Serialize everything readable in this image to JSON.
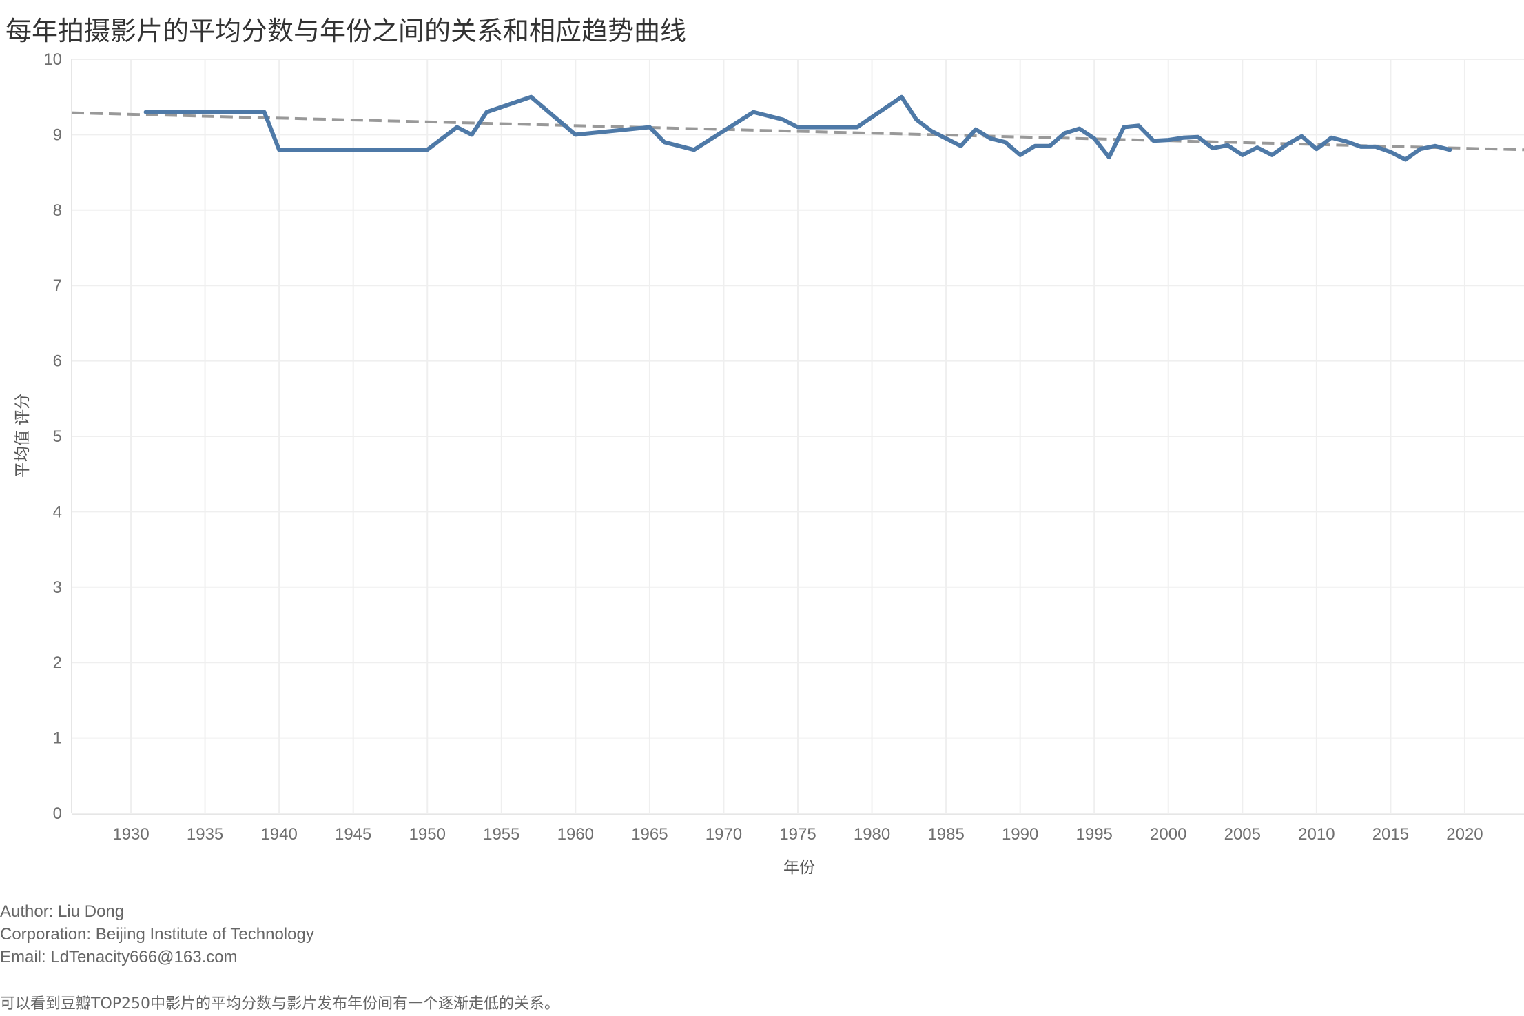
{
  "page": {
    "title": "每年拍摄影片的平均分数与年份之间的关系和相应趋势曲线",
    "credits": {
      "author": "Author: Liu Dong",
      "corporation": "Corporation: Beijing Institute of Technology",
      "email": "Email: LdTenacity666@163.com"
    },
    "note": "可以看到豆瓣TOP250中影片的平均分数与影片发布年份间有一个逐渐走低的关系。"
  },
  "chart_data": {
    "type": "line",
    "title": "每年拍摄影片的平均分数与年份之间的关系和相应趋势曲线",
    "xlabel": "年份",
    "ylabel": "平均值 评分",
    "xlim": [
      1926,
      2024
    ],
    "ylim": [
      0,
      10
    ],
    "x_ticks": [
      1930,
      1935,
      1940,
      1945,
      1950,
      1955,
      1960,
      1965,
      1970,
      1975,
      1980,
      1985,
      1990,
      1995,
      2000,
      2005,
      2010,
      2015,
      2020
    ],
    "y_ticks": [
      0,
      1,
      2,
      3,
      4,
      5,
      6,
      7,
      8,
      9,
      10
    ],
    "grid": true,
    "series": [
      {
        "color": "#4e79a7",
        "points": [
          [
            1931,
            9.3
          ],
          [
            1939,
            9.3
          ],
          [
            1940,
            8.8
          ],
          [
            1950,
            8.8
          ],
          [
            1952,
            9.1
          ],
          [
            1953,
            9.0
          ],
          [
            1954,
            9.3
          ],
          [
            1957,
            9.5
          ],
          [
            1960,
            9.0
          ],
          [
            1965,
            9.1
          ],
          [
            1966,
            8.9
          ],
          [
            1968,
            8.8
          ],
          [
            1972,
            9.3
          ],
          [
            1974,
            9.2
          ],
          [
            1975,
            9.1
          ],
          [
            1979,
            9.1
          ],
          [
            1982,
            9.5
          ],
          [
            1983,
            9.2
          ],
          [
            1984,
            9.05
          ],
          [
            1986,
            8.85
          ],
          [
            1987,
            9.07
          ],
          [
            1988,
            8.95
          ],
          [
            1989,
            8.9
          ],
          [
            1990,
            8.73
          ],
          [
            1991,
            8.85
          ],
          [
            1992,
            8.85
          ],
          [
            1993,
            9.02
          ],
          [
            1994,
            9.08
          ],
          [
            1995,
            8.95
          ],
          [
            1996,
            8.7
          ],
          [
            1997,
            9.1
          ],
          [
            1998,
            9.12
          ],
          [
            1999,
            8.92
          ],
          [
            2000,
            8.93
          ],
          [
            2001,
            8.96
          ],
          [
            2002,
            8.97
          ],
          [
            2003,
            8.82
          ],
          [
            2004,
            8.86
          ],
          [
            2005,
            8.73
          ],
          [
            2006,
            8.83
          ],
          [
            2007,
            8.73
          ],
          [
            2008,
            8.87
          ],
          [
            2009,
            8.98
          ],
          [
            2010,
            8.81
          ],
          [
            2011,
            8.96
          ],
          [
            2012,
            8.91
          ],
          [
            2013,
            8.84
          ],
          [
            2014,
            8.84
          ],
          [
            2015,
            8.77
          ],
          [
            2016,
            8.67
          ],
          [
            2017,
            8.81
          ],
          [
            2018,
            8.85
          ],
          [
            2019,
            8.8
          ]
        ]
      }
    ],
    "trend_line": {
      "style": "dashed",
      "color": "#999999",
      "from": [
        1926,
        9.29
      ],
      "to": [
        2024,
        8.8
      ]
    }
  }
}
